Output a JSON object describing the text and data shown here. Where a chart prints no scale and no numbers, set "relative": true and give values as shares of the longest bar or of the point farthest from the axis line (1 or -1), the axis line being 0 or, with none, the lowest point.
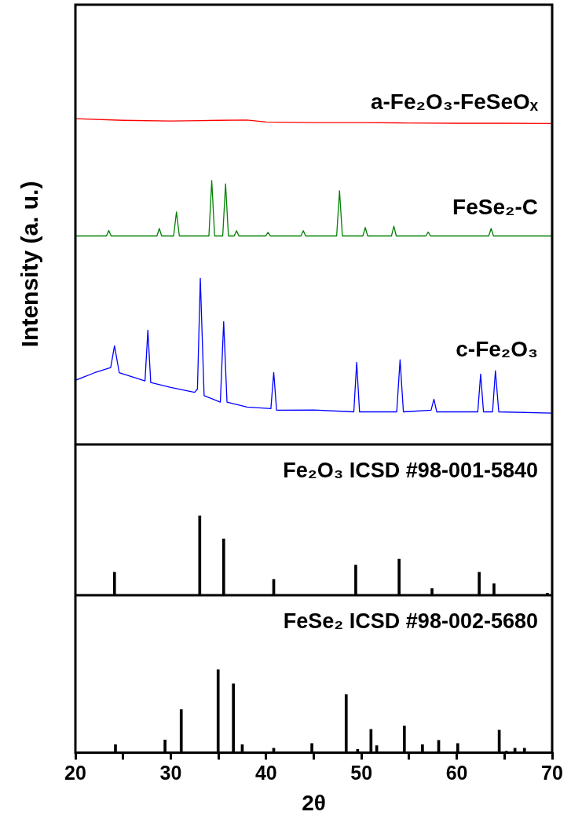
{
  "chart_data": [
    {
      "type": "line",
      "relative": true,
      "ylabel": "Intensity (a. u.)",
      "xlim": [
        20,
        70
      ],
      "xticks": [
        20,
        30,
        40,
        50,
        60,
        70
      ],
      "tick_labels": false,
      "grid": false,
      "marker": "none",
      "line_style": "solid",
      "series": [
        {
          "name": "a-Fe₂O₃-FeSeOₓ",
          "color": "#ff0000",
          "x": [
            20,
            25,
            30,
            35,
            38,
            40,
            45,
            50,
            55,
            60,
            65,
            70
          ],
          "values": [
            1,
            0.995,
            0.993,
            0.995,
            0.996,
            0.99,
            0.988,
            0.988,
            0.987,
            0.986,
            0.986,
            0.985
          ]
        },
        {
          "name": "FeSe₂-C",
          "color": "#008000",
          "x": [
            20,
            23.25,
            23.5,
            23.75,
            28.55,
            28.8,
            29.05,
            30.3,
            30.6,
            30.9,
            34.0,
            34.3,
            34.6,
            35.45,
            35.75,
            36.05,
            36.65,
            36.9,
            37.15,
            39.95,
            40.2,
            40.45,
            43.65,
            43.9,
            44.15,
            47.4,
            47.7,
            48.0,
            50.15,
            50.4,
            50.65,
            53.15,
            53.4,
            53.65,
            56.75,
            57.0,
            57.25,
            63.35,
            63.6,
            63.85,
            70
          ],
          "values": [
            0.64,
            0.64,
            0.657,
            0.64,
            0.64,
            0.663,
            0.64,
            0.64,
            0.714,
            0.64,
            0.64,
            0.81,
            0.64,
            0.64,
            0.8,
            0.64,
            0.64,
            0.656,
            0.64,
            0.64,
            0.651,
            0.64,
            0.64,
            0.656,
            0.64,
            0.64,
            0.779,
            0.64,
            0.64,
            0.666,
            0.64,
            0.64,
            0.67,
            0.64,
            0.64,
            0.652,
            0.64,
            0.64,
            0.663,
            0.64,
            0.64
          ]
        },
        {
          "name": "c-Fe₂O₃",
          "color": "#0000ff",
          "x": [
            20,
            22,
            23.7,
            24.1,
            24.6,
            27.3,
            27.6,
            27.9,
            30,
            32.5,
            32.8,
            33.1,
            33.5,
            35.2,
            35.55,
            35.9,
            38,
            40.5,
            40.8,
            41.1,
            45,
            49.2,
            49.5,
            49.8,
            53.7,
            54.05,
            54.4,
            57.3,
            57.6,
            57.9,
            62.2,
            62.5,
            62.8,
            63.75,
            64.05,
            64.4,
            70
          ],
          "values": [
            0.197,
            0.22,
            0.236,
            0.303,
            0.22,
            0.195,
            0.351,
            0.19,
            0.175,
            0.16,
            0.17,
            0.51,
            0.15,
            0.13,
            0.377,
            0.13,
            0.115,
            0.11,
            0.221,
            0.105,
            0.106,
            0.1,
            0.252,
            0.1,
            0.1,
            0.26,
            0.1,
            0.105,
            0.139,
            0.1,
            0.1,
            0.216,
            0.1,
            0.1,
            0.226,
            0.1,
            0.096
          ]
        }
      ]
    },
    {
      "type": "bar",
      "relative": true,
      "title": "Fe₂O₃ ICSD #98-001-5840",
      "xlim": [
        20,
        70
      ],
      "xticks": [
        20,
        30,
        40,
        50,
        60,
        70
      ],
      "tick_labels": false,
      "grid": false,
      "color": "#000000",
      "x": [
        24.1,
        33.04,
        35.55,
        40.8,
        49.4,
        53.95,
        57.4,
        62.35,
        63.9,
        69.5
      ],
      "values": [
        0.29,
        1,
        0.71,
        0.2,
        0.38,
        0.455,
        0.084,
        0.29,
        0.145,
        0.025
      ]
    },
    {
      "type": "bar",
      "relative": true,
      "title": "FeSe₂ ICSD #98-002-5680",
      "xlabel": "2θ",
      "xlim": [
        20,
        70
      ],
      "xticks": [
        20,
        {
          "value": 25,
          "label": null
        },
        30,
        {
          "value": 35,
          "label": null
        },
        40,
        {
          "value": 45,
          "label": null
        },
        50,
        {
          "value": 55,
          "label": null
        },
        60,
        {
          "value": 65,
          "label": null
        },
        70
      ],
      "tick_labels": "x",
      "grid": false,
      "color": "#000000",
      "x": [
        24.2,
        29.4,
        31.1,
        34.97,
        36.57,
        37.5,
        40.8,
        44.8,
        48.4,
        49.6,
        51.0,
        51.6,
        54.5,
        56.4,
        58.1,
        60.1,
        64.45,
        65.2,
        66.1,
        67.1
      ],
      "values": [
        0.096,
        0.152,
        0.52,
        1,
        0.83,
        0.096,
        0.052,
        0.109,
        0.7,
        0.039,
        0.28,
        0.083,
        0.32,
        0.096,
        0.148,
        0.109,
        0.27,
        0.017,
        0.052,
        0.052
      ]
    }
  ]
}
